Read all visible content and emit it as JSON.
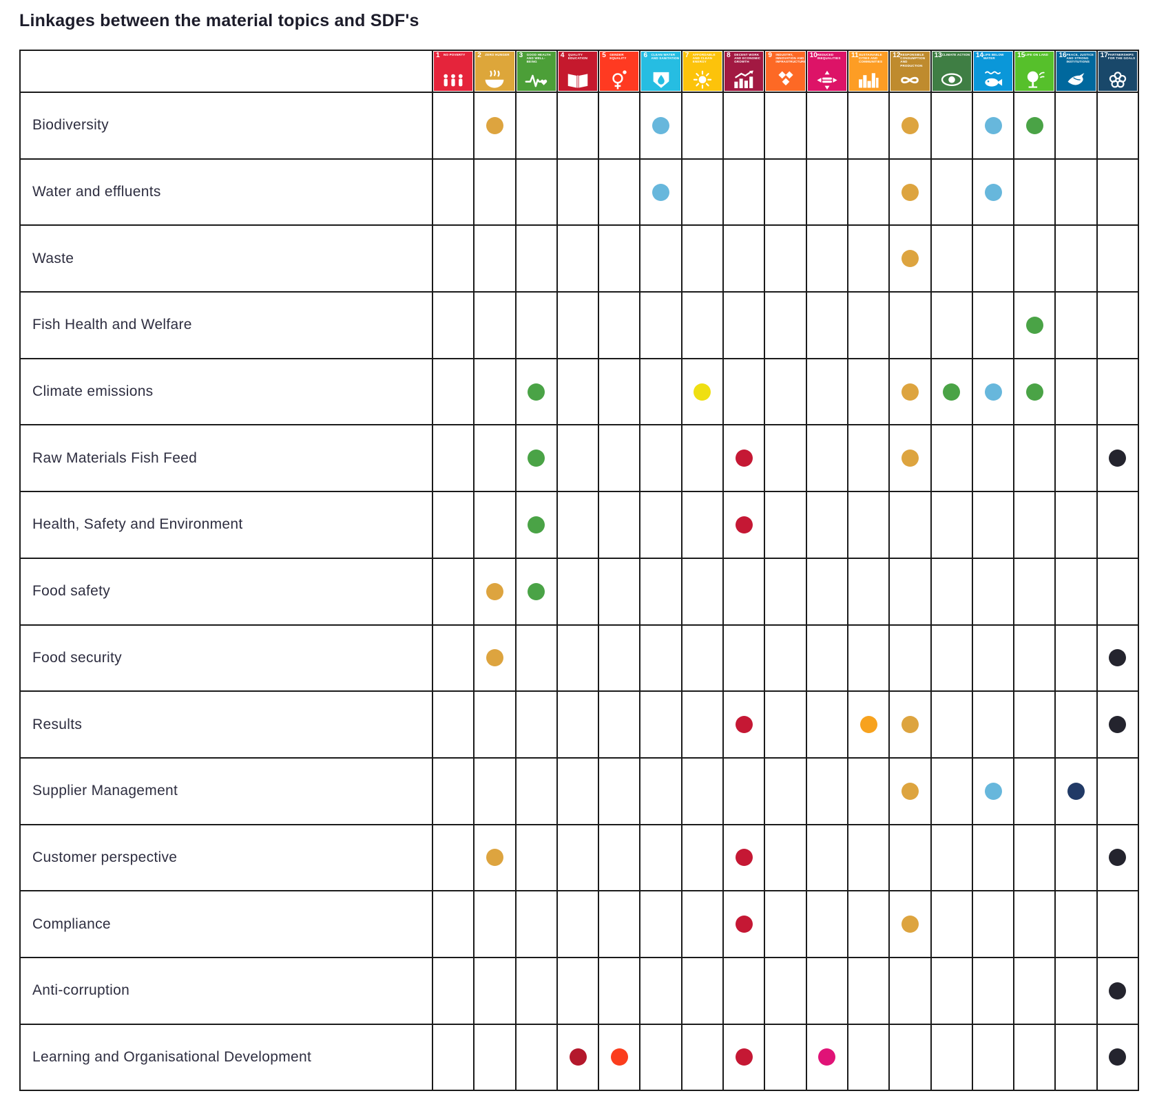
{
  "title": "Linkages between the material topics and SDF's",
  "chart_data": {
    "type": "table",
    "title": "Linkages between the material topics and SDF's",
    "column_goals": [
      {
        "num": 1,
        "name": "No Poverty",
        "color": "#E5243B",
        "glyph": "people-icon"
      },
      {
        "num": 2,
        "name": "Zero Hunger",
        "color": "#DDA63A",
        "glyph": "bowl-icon"
      },
      {
        "num": 3,
        "name": "Good Health and Well-Being",
        "color": "#4C9F38",
        "glyph": "heartbeat-icon"
      },
      {
        "num": 4,
        "name": "Quality Education",
        "color": "#C5192D",
        "glyph": "book-icon"
      },
      {
        "num": 5,
        "name": "Gender Equality",
        "color": "#FF3A21",
        "glyph": "gender-icon"
      },
      {
        "num": 6,
        "name": "Clean Water and Sanitation",
        "color": "#26BDE2",
        "glyph": "water-icon"
      },
      {
        "num": 7,
        "name": "Affordable and Clean Energy",
        "color": "#FCC30B",
        "glyph": "sun-icon"
      },
      {
        "num": 8,
        "name": "Decent Work and Economic Growth",
        "color": "#A21942",
        "glyph": "growth-icon"
      },
      {
        "num": 9,
        "name": "Industry, Innovation and Infrastructure",
        "color": "#FD6925",
        "glyph": "cubes-icon"
      },
      {
        "num": 10,
        "name": "Reduced Inequalities",
        "color": "#DD1367",
        "glyph": "equality-icon"
      },
      {
        "num": 11,
        "name": "Sustainable Cities and Communities",
        "color": "#FD9D24",
        "glyph": "city-icon"
      },
      {
        "num": 12,
        "name": "Responsible Consumption and Production",
        "color": "#BF8B2E",
        "glyph": "infinity-icon"
      },
      {
        "num": 13,
        "name": "Climate Action",
        "color": "#3F7E44",
        "glyph": "eye-icon"
      },
      {
        "num": 14,
        "name": "Life Below Water",
        "color": "#0A97D9",
        "glyph": "fish-icon"
      },
      {
        "num": 15,
        "name": "Life on Land",
        "color": "#56C02B",
        "glyph": "tree-icon"
      },
      {
        "num": 16,
        "name": "Peace, Justice and Strong Institutions",
        "color": "#00689D",
        "glyph": "dove-icon"
      },
      {
        "num": 17,
        "name": "Partnerships for the Goals",
        "color": "#19486A",
        "glyph": "rings-icon"
      }
    ],
    "dot_colors": {
      "gold": "#DDA43F",
      "green": "#4AA346",
      "lightblue": "#67B7DC",
      "yellow": "#EFDF12",
      "red": "#C51834",
      "darkred": "#B4182C",
      "vermilion": "#FB3D1D",
      "magenta": "#E01377",
      "orange": "#F7A21E",
      "navy": "#213A66",
      "black": "#24242E"
    },
    "rows": [
      {
        "label": "Biodiversity",
        "links": [
          {
            "goal": 2,
            "color": "gold"
          },
          {
            "goal": 6,
            "color": "lightblue"
          },
          {
            "goal": 12,
            "color": "gold"
          },
          {
            "goal": 14,
            "color": "lightblue"
          },
          {
            "goal": 15,
            "color": "green"
          }
        ]
      },
      {
        "label": "Water and effluents",
        "links": [
          {
            "goal": 6,
            "color": "lightblue"
          },
          {
            "goal": 12,
            "color": "gold"
          },
          {
            "goal": 14,
            "color": "lightblue"
          }
        ]
      },
      {
        "label": "Waste",
        "links": [
          {
            "goal": 12,
            "color": "gold"
          }
        ]
      },
      {
        "label": "Fish Health and Welfare",
        "links": [
          {
            "goal": 15,
            "color": "green"
          }
        ]
      },
      {
        "label": "Climate emissions",
        "links": [
          {
            "goal": 3,
            "color": "green"
          },
          {
            "goal": 7,
            "color": "yellow"
          },
          {
            "goal": 12,
            "color": "gold"
          },
          {
            "goal": 13,
            "color": "green"
          },
          {
            "goal": 14,
            "color": "lightblue"
          },
          {
            "goal": 15,
            "color": "green"
          }
        ]
      },
      {
        "label": "Raw Materials Fish Feed",
        "links": [
          {
            "goal": 3,
            "color": "green"
          },
          {
            "goal": 8,
            "color": "red"
          },
          {
            "goal": 12,
            "color": "gold"
          },
          {
            "goal": 17,
            "color": "black"
          }
        ]
      },
      {
        "label": "Health, Safety and Environment",
        "links": [
          {
            "goal": 3,
            "color": "green"
          },
          {
            "goal": 8,
            "color": "red"
          }
        ]
      },
      {
        "label": "Food safety",
        "links": [
          {
            "goal": 2,
            "color": "gold"
          },
          {
            "goal": 3,
            "color": "green"
          }
        ]
      },
      {
        "label": "Food security",
        "links": [
          {
            "goal": 2,
            "color": "gold"
          },
          {
            "goal": 17,
            "color": "black"
          }
        ]
      },
      {
        "label": "Results",
        "links": [
          {
            "goal": 8,
            "color": "red"
          },
          {
            "goal": 11,
            "color": "orange"
          },
          {
            "goal": 12,
            "color": "gold"
          },
          {
            "goal": 17,
            "color": "black"
          }
        ]
      },
      {
        "label": "Supplier Management",
        "links": [
          {
            "goal": 12,
            "color": "gold"
          },
          {
            "goal": 14,
            "color": "lightblue"
          },
          {
            "goal": 16,
            "color": "navy"
          }
        ]
      },
      {
        "label": "Customer perspective",
        "links": [
          {
            "goal": 2,
            "color": "gold"
          },
          {
            "goal": 8,
            "color": "red"
          },
          {
            "goal": 17,
            "color": "black"
          }
        ]
      },
      {
        "label": "Compliance",
        "links": [
          {
            "goal": 8,
            "color": "red"
          },
          {
            "goal": 12,
            "color": "gold"
          }
        ]
      },
      {
        "label": "Anti-corruption",
        "links": [
          {
            "goal": 17,
            "color": "black"
          }
        ]
      },
      {
        "label": "Learning and Organisational Development",
        "links": [
          {
            "goal": 4,
            "color": "darkred"
          },
          {
            "goal": 5,
            "color": "vermilion"
          },
          {
            "goal": 8,
            "color": "red"
          },
          {
            "goal": 10,
            "color": "magenta"
          },
          {
            "goal": 17,
            "color": "black"
          }
        ]
      }
    ]
  }
}
